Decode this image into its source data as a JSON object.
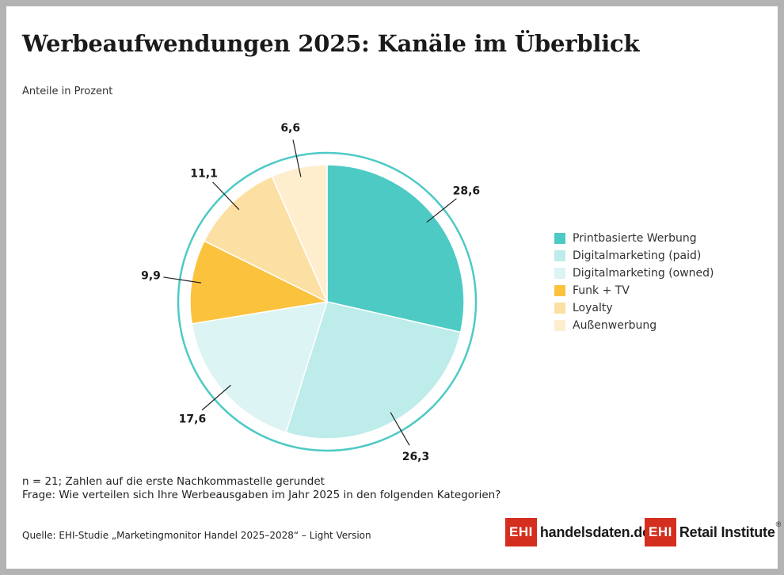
{
  "title": "Werbeaufwendungen 2025: Kanäle im Überblick",
  "subtitle": "Anteile in Prozent",
  "chart_data": {
    "type": "pie",
    "series": [
      {
        "name": "Printbasierte Werbung",
        "value": 28.6,
        "label": "28,6",
        "color": "#4ecac5"
      },
      {
        "name": "Digitalmarketing (paid)",
        "value": 26.3,
        "label": "26,3",
        "color": "#bdecea"
      },
      {
        "name": "Digitalmarketing (owned)",
        "value": 17.6,
        "label": "17,6",
        "color": "#dcf4f3"
      },
      {
        "name": "Funk + TV",
        "value": 9.9,
        "label": "9,9",
        "color": "#fbc23d"
      },
      {
        "name": "Loyalty",
        "value": 11.1,
        "label": "11,1",
        "color": "#fcdfa2"
      },
      {
        "name": "Außenwerbung",
        "value": 6.6,
        "label": "6,6",
        "color": "#feeecd"
      }
    ],
    "ring_color": "#4ecac5",
    "legend_position": "right"
  },
  "notes": {
    "line1": "n = 21; Zahlen auf die erste Nachkommastelle gerundet",
    "line2": "Frage: Wie verteilen sich Ihre Werbeausgaben im Jahr 2025 in den folgenden Kategorien?"
  },
  "source": "Quelle: EHI-Studie „Marketingmonitor Handel 2025–2028“ – Light Version",
  "logos": {
    "handelsdaten": {
      "box": "EHI",
      "text": "handelsdaten.de"
    },
    "retail": {
      "box": "EHI",
      "text": "Retail Institute",
      "mark": "®"
    }
  },
  "brand_color": "#d42e1e"
}
